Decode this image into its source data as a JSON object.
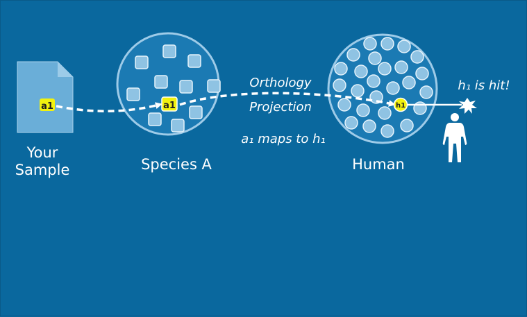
{
  "labels": {
    "your_sample_line1": "Your",
    "your_sample_line2": "Sample",
    "species": "Species A",
    "human": "Human",
    "orthology_line1": "Orthology",
    "orthology_line2": "Projection",
    "mapping_note": "a₁ maps to h₁",
    "hit_note": "h₁ is hit!"
  },
  "chips": {
    "sample_gene": "a1",
    "species_gene": "a1",
    "human_gene": "h1"
  },
  "colors": {
    "background": "#0a689e",
    "circle_fill": "#1b7ab3",
    "circle_stroke": "#9ecbe8",
    "square_fill": "#8fc3e3",
    "square_stroke": "#e6f3fb",
    "highlight": "#f2f20f",
    "document_fill": "#6aaed8",
    "white": "#ffffff"
  },
  "icons": {
    "document": "document-icon",
    "human_figure": "human-figure-icon",
    "burst": "starburst-icon"
  }
}
